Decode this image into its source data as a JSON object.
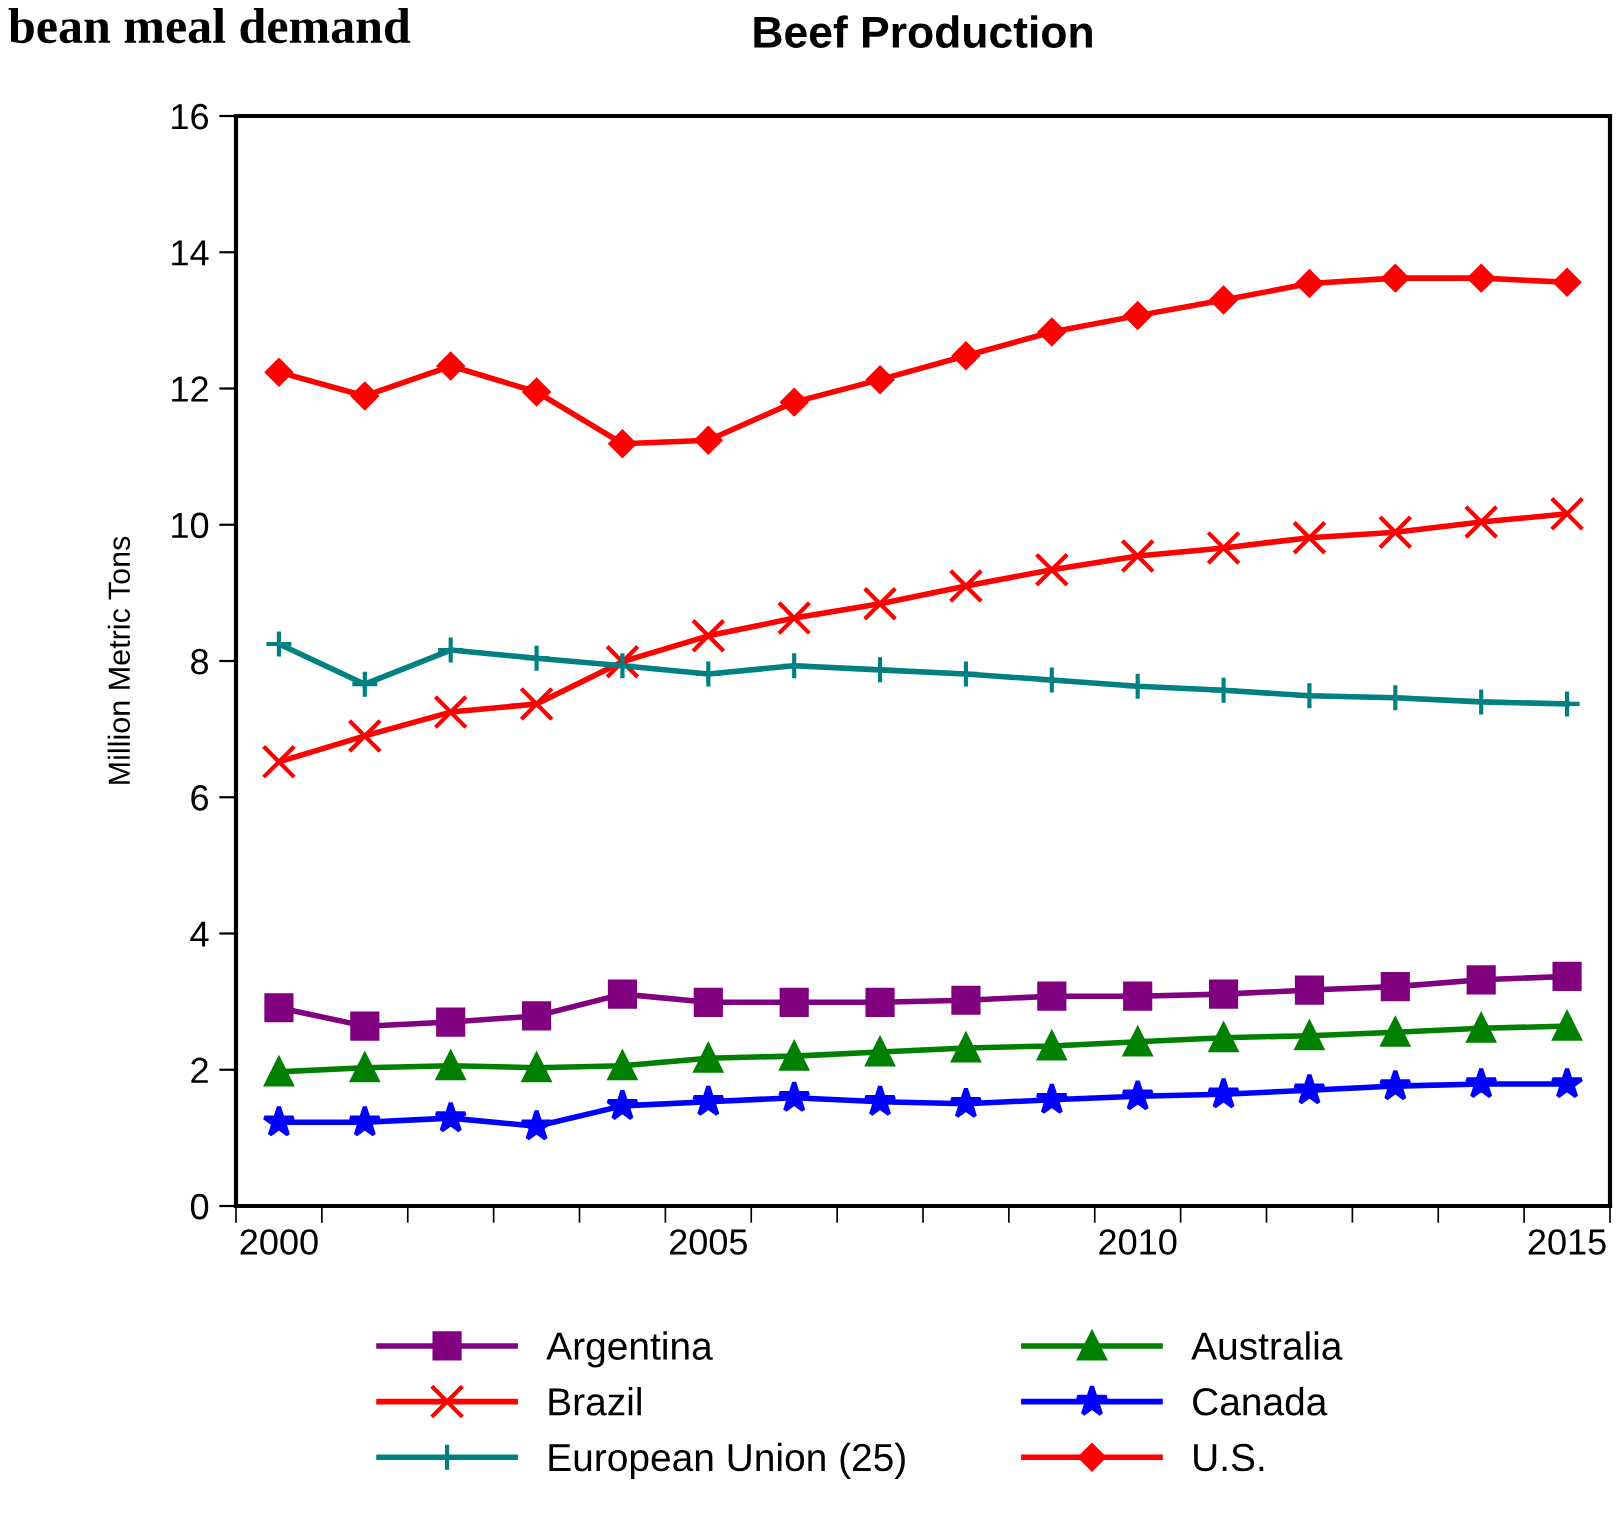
{
  "chart_data": {
    "type": "line",
    "title": "Beef Production",
    "ylabel": "Million Metric Tons",
    "annotations": [
      "bean meal demand"
    ],
    "categories": [
      "2000",
      null,
      null,
      null,
      null,
      "2005",
      null,
      null,
      null,
      null,
      "2010",
      null,
      null,
      null,
      null,
      "2015"
    ],
    "ylim": [
      0,
      16
    ],
    "yticks": [
      0,
      2,
      4,
      6,
      8,
      10,
      12,
      14,
      16
    ],
    "grid": false,
    "legend": "bottom",
    "series": [
      {
        "name": "Argentina",
        "color": "#800080",
        "marker": "square",
        "values": [
          2.91,
          2.64,
          2.7,
          2.79,
          3.11,
          2.99,
          2.99,
          2.99,
          3.02,
          3.08,
          3.08,
          3.11,
          3.17,
          3.22,
          3.32,
          3.37
        ]
      },
      {
        "name": "Australia",
        "color": "#008000",
        "marker": "triangle",
        "values": [
          1.97,
          2.03,
          2.06,
          2.03,
          2.06,
          2.17,
          2.2,
          2.26,
          2.32,
          2.35,
          2.41,
          2.47,
          2.5,
          2.55,
          2.61,
          2.64
        ]
      },
      {
        "name": "Brazil",
        "color": "#ff0000",
        "marker": "cross",
        "values": [
          6.52,
          6.9,
          7.25,
          7.37,
          7.99,
          8.37,
          8.63,
          8.84,
          9.1,
          9.34,
          9.54,
          9.66,
          9.81,
          9.89,
          10.04,
          10.16
        ]
      },
      {
        "name": "Canada",
        "color": "#0000ff",
        "marker": "star",
        "values": [
          1.23,
          1.23,
          1.29,
          1.17,
          1.47,
          1.53,
          1.59,
          1.53,
          1.5,
          1.56,
          1.61,
          1.64,
          1.7,
          1.76,
          1.79,
          1.79
        ]
      },
      {
        "name": "European Union (25)",
        "color": "#008080",
        "marker": "plus",
        "values": [
          8.25,
          7.66,
          8.16,
          8.04,
          7.93,
          7.81,
          7.93,
          7.87,
          7.81,
          7.72,
          7.63,
          7.57,
          7.49,
          7.46,
          7.4,
          7.37
        ]
      },
      {
        "name": "U.S.",
        "color": "#ff0000",
        "marker": "diamond",
        "values": [
          12.24,
          11.89,
          12.33,
          11.95,
          11.19,
          11.24,
          11.8,
          12.13,
          12.48,
          12.83,
          13.07,
          13.3,
          13.54,
          13.62,
          13.62,
          13.56
        ]
      }
    ]
  }
}
